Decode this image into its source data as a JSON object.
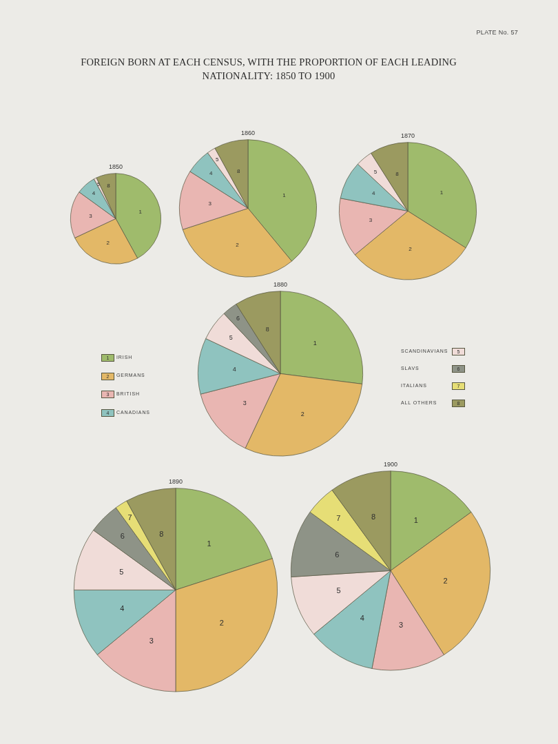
{
  "chart_data": [
    {
      "type": "other",
      "title": "FOREIGN BORN AT EACH CENSUS, WITH THE PROPORTION OF EACH LEADING NATIONALITY: 1850 TO 1900",
      "annotations": [
        "PLATE No. 57"
      ]
    },
    {
      "type": "pie",
      "title": "1850",
      "categories": [
        "1",
        "2",
        "3",
        "4",
        "5",
        "8"
      ],
      "values": [
        42,
        26,
        17,
        7,
        1,
        7
      ],
      "colors": [
        "#9fbb6c",
        "#e3b867",
        "#e9b6b2",
        "#8fc3bf",
        "#f0dcd8",
        "#9b9a60"
      ]
    },
    {
      "type": "pie",
      "title": "1860",
      "categories": [
        "1",
        "2",
        "3",
        "4",
        "5",
        "8"
      ],
      "values": [
        39,
        31,
        14,
        6,
        2,
        8
      ],
      "colors": [
        "#9fbb6c",
        "#e3b867",
        "#e9b6b2",
        "#8fc3bf",
        "#f0dcd8",
        "#9b9a60"
      ]
    },
    {
      "type": "pie",
      "title": "1870",
      "categories": [
        "1",
        "2",
        "3",
        "4",
        "5",
        "8"
      ],
      "values": [
        34,
        30,
        14,
        9,
        4,
        9
      ],
      "colors": [
        "#9fbb6c",
        "#e3b867",
        "#e9b6b2",
        "#8fc3bf",
        "#f0dcd8",
        "#9b9a60"
      ]
    },
    {
      "type": "pie",
      "title": "1880",
      "categories": [
        "1",
        "2",
        "3",
        "4",
        "5",
        "6",
        "7",
        "8"
      ],
      "values": [
        27,
        30,
        14,
        11,
        6,
        3,
        null,
        9
      ],
      "colors": [
        "#9fbb6c",
        "#e3b867",
        "#e9b6b2",
        "#8fc3bf",
        "#f0dcd8",
        "#8e9387",
        "#e6de76",
        "#9b9a60"
      ],
      "annotations": [
        "IRISH",
        "GERMANS",
        "BRITISH",
        "CANADIANS",
        "SCANDINAVIANS",
        "SLAVS",
        "ITALIANS",
        "ALL OTHERS"
      ]
    },
    {
      "type": "pie",
      "title": "1890",
      "categories": [
        "1",
        "2",
        "3",
        "4",
        "5",
        "6",
        "7",
        "8"
      ],
      "values": [
        20,
        30,
        14,
        11,
        10,
        5,
        2,
        8
      ],
      "colors": [
        "#9fbb6c",
        "#e3b867",
        "#e9b6b2",
        "#8fc3bf",
        "#f0dcd8",
        "#8e9387",
        "#e6de76",
        "#9b9a60"
      ]
    },
    {
      "type": "pie",
      "title": "1900",
      "categories": [
        "1",
        "2",
        "3",
        "4",
        "5",
        "6",
        "7",
        "8"
      ],
      "values": [
        15,
        26,
        12,
        11,
        10,
        11,
        5,
        10
      ],
      "colors": [
        "#9fbb6c",
        "#e3b867",
        "#e9b6b2",
        "#8fc3bf",
        "#f0dcd8",
        "#8e9387",
        "#e6de76",
        "#9b9a60"
      ]
    }
  ]
}
